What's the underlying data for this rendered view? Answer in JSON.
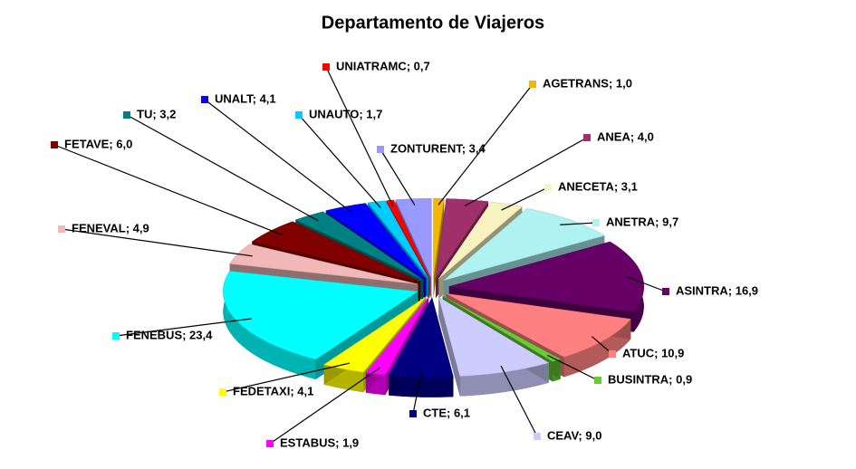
{
  "chart_data": {
    "type": "pie3d",
    "title": "Departamento de Viajeros",
    "values": [
      1.0,
      4.0,
      3.1,
      9.7,
      16.9,
      10.9,
      0.9,
      9.0,
      6.1,
      1.9,
      4.1,
      23.4,
      4.9,
      6.0,
      3.2,
      4.1,
      1.7,
      0.7,
      3.4
    ],
    "value_labels": [
      "AGETRANS; 1,0",
      "ANEA; 4,0",
      "ANECETA; 3,1",
      "ANETRA; 9,7",
      "ASINTRA; 16,9",
      "ATUC; 10,9",
      "BUSINTRA; 0,9",
      "CEAV; 9,0",
      "CTE; 6,1",
      "ESTABUS; 1,9",
      "FEDETAXI; 4,1",
      "FENEBUS; 23,4",
      "FENEVAL; 4,9",
      "FETAVE; 6,0",
      "TU; 3,2",
      "UNALT; 4,1",
      "UNAUTO; 1,7",
      "UNIATRAMC; 0,7",
      "ZONTURENT; 3,4"
    ],
    "colors": [
      "#f5b800",
      "#a0306a",
      "#f8f2c0",
      "#aef2f2",
      "#660066",
      "#ff8080",
      "#66cc33",
      "#ccccff",
      "#000080",
      "#ff00ff",
      "#ffff00",
      "#00ffff",
      "#f2b8b8",
      "#800000",
      "#008080",
      "#0000ff",
      "#00ccff",
      "#ff0000",
      "#9999ff"
    ]
  }
}
